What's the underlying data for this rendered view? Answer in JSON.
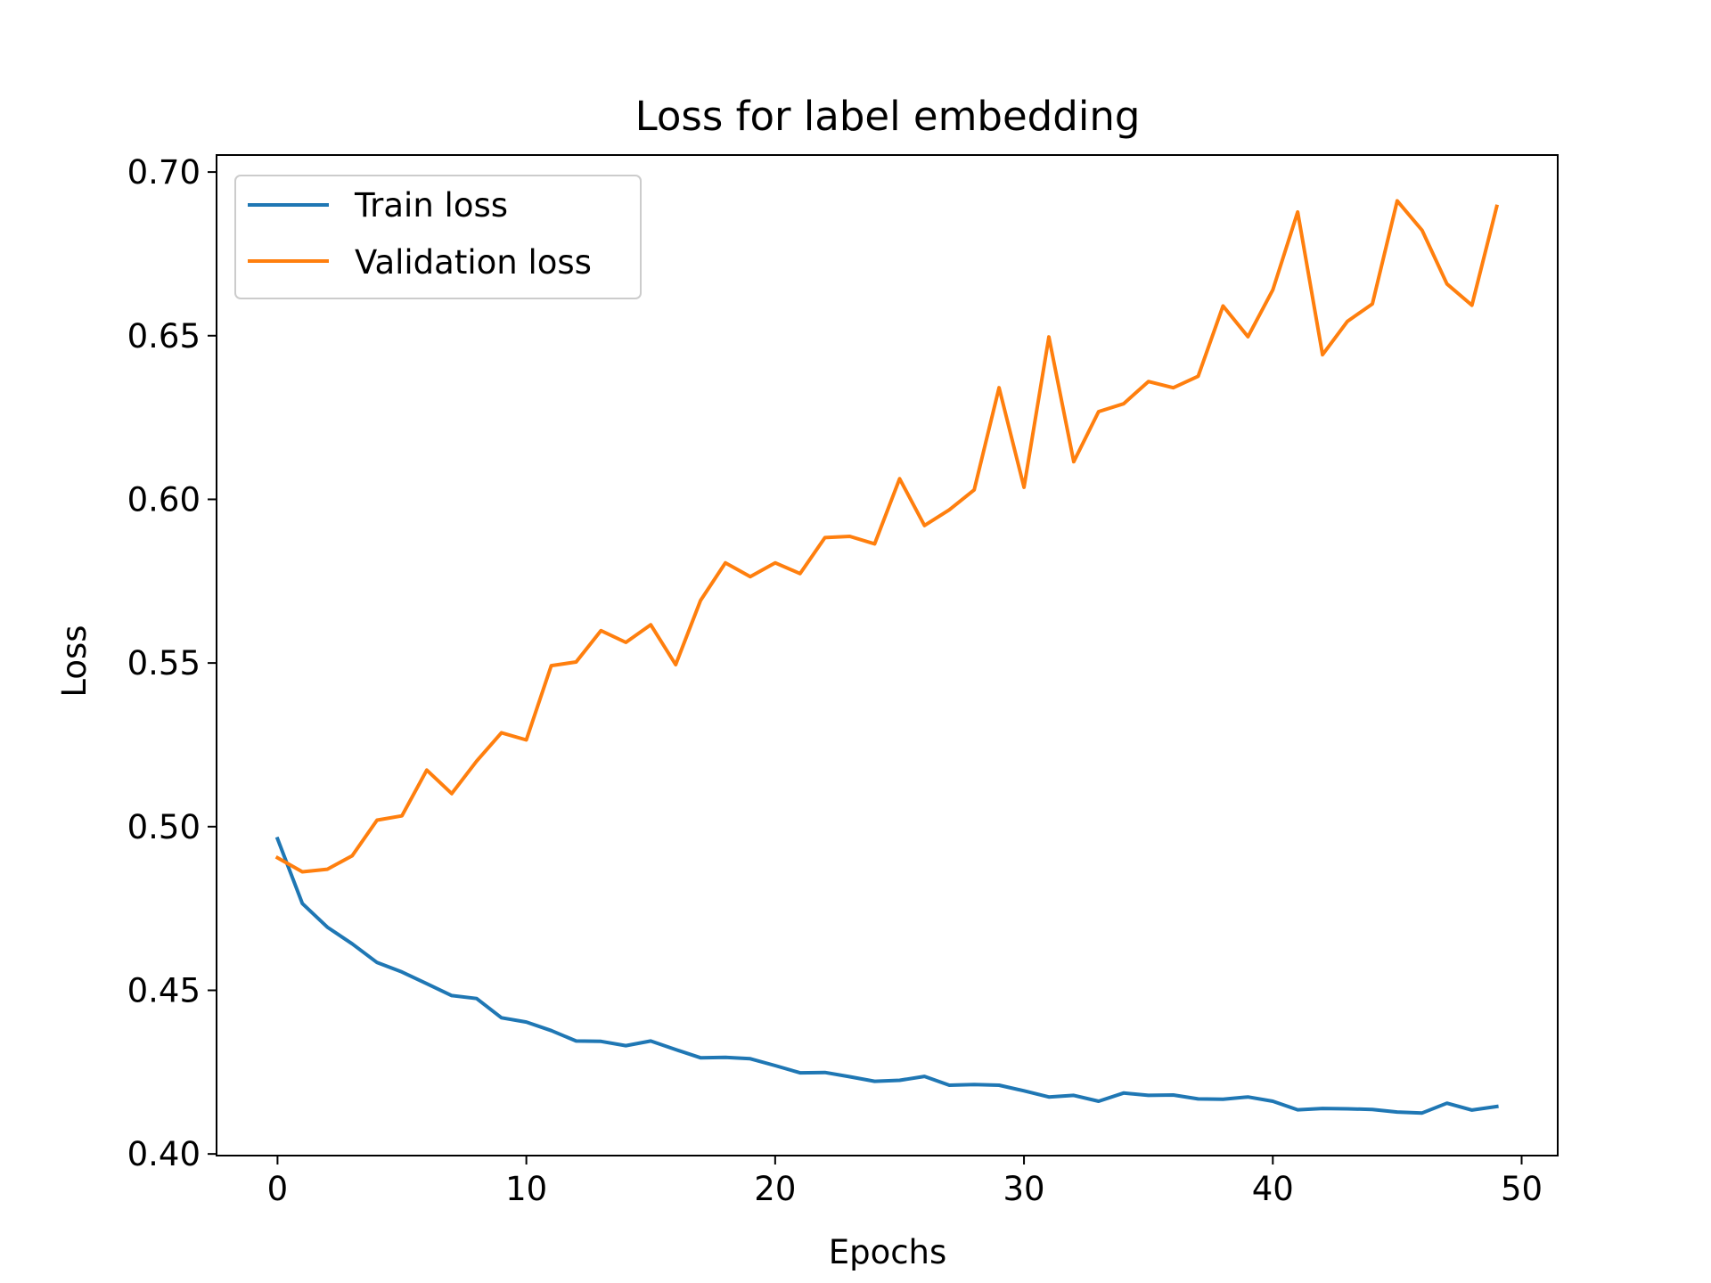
{
  "chart_data": {
    "type": "line",
    "title": "Loss for label embedding",
    "xlabel": "Epochs",
    "ylabel": "Loss",
    "xlim": [
      -2.45,
      51.45
    ],
    "ylim": [
      0.3995,
      0.7052
    ],
    "xticks": [
      0,
      10,
      20,
      30,
      40,
      50
    ],
    "yticks": [
      0.4,
      0.45,
      0.5,
      0.55,
      0.6,
      0.65,
      0.7
    ],
    "ytick_labels": [
      "0.40",
      "0.45",
      "0.50",
      "0.55",
      "0.60",
      "0.65",
      "0.70"
    ],
    "grid": false,
    "legend_position": "top-left",
    "x": [
      0,
      1,
      2,
      3,
      4,
      5,
      6,
      7,
      8,
      9,
      10,
      11,
      12,
      13,
      14,
      15,
      16,
      17,
      18,
      19,
      20,
      21,
      22,
      23,
      24,
      25,
      26,
      27,
      28,
      29,
      30,
      31,
      32,
      33,
      34,
      35,
      36,
      37,
      38,
      39,
      40,
      41,
      42,
      43,
      44,
      45,
      46,
      47,
      48,
      49
    ],
    "series": [
      {
        "name": "Train loss",
        "color": "#1f77b4",
        "values": [
          0.4963,
          0.4765,
          0.4693,
          0.4642,
          0.4585,
          0.4556,
          0.452,
          0.4484,
          0.4475,
          0.4416,
          0.4403,
          0.4377,
          0.4345,
          0.4344,
          0.4331,
          0.4345,
          0.4319,
          0.4294,
          0.4295,
          0.4291,
          0.427,
          0.4248,
          0.4249,
          0.4236,
          0.4222,
          0.4225,
          0.4237,
          0.421,
          0.4212,
          0.421,
          0.4193,
          0.4174,
          0.4179,
          0.4161,
          0.4186,
          0.4179,
          0.418,
          0.4168,
          0.4167,
          0.4174,
          0.4161,
          0.4135,
          0.4139,
          0.4138,
          0.4136,
          0.4128,
          0.4125,
          0.4155,
          0.4134,
          0.4145
        ]
      },
      {
        "name": "Validation loss",
        "color": "#ff7f0e",
        "values": [
          0.4905,
          0.4862,
          0.487,
          0.4911,
          0.502,
          0.5033,
          0.5173,
          0.5101,
          0.52,
          0.5287,
          0.5265,
          0.5492,
          0.5503,
          0.5599,
          0.5563,
          0.5617,
          0.5495,
          0.5691,
          0.5806,
          0.5764,
          0.5806,
          0.5773,
          0.5883,
          0.5887,
          0.5864,
          0.6063,
          0.592,
          0.5968,
          0.6029,
          0.6341,
          0.6037,
          0.6496,
          0.6115,
          0.6268,
          0.6292,
          0.636,
          0.6341,
          0.6376,
          0.6591,
          0.6497,
          0.664,
          0.6878,
          0.6442,
          0.6544,
          0.6597,
          0.6912,
          0.6822,
          0.6658,
          0.6593,
          0.6895
        ]
      }
    ]
  }
}
